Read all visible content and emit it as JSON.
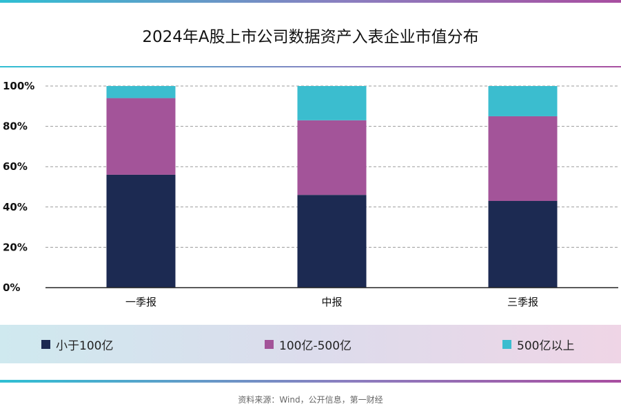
{
  "chart_data": {
    "type": "bar",
    "stacked": true,
    "title": "2024年A股上市公司数据资产入表企业市值分布",
    "categories": [
      "一季报",
      "中报",
      "三季报"
    ],
    "series": [
      {
        "name": "小于100亿",
        "color": "#1c2a52",
        "values": [
          56,
          46,
          43
        ]
      },
      {
        "name": "100亿-500亿",
        "color": "#a35499",
        "values": [
          38,
          37,
          42
        ]
      },
      {
        "name": "500亿以上",
        "color": "#3bbdcf",
        "values": [
          6,
          17,
          15
        ]
      }
    ],
    "ylim": [
      0,
      100
    ],
    "yticks": [
      "0%",
      "20%",
      "40%",
      "60%",
      "80%",
      "100%"
    ],
    "grid": true,
    "legend_position": "bottom"
  },
  "source": "资料来源：Wind，公开信息，第一财经"
}
